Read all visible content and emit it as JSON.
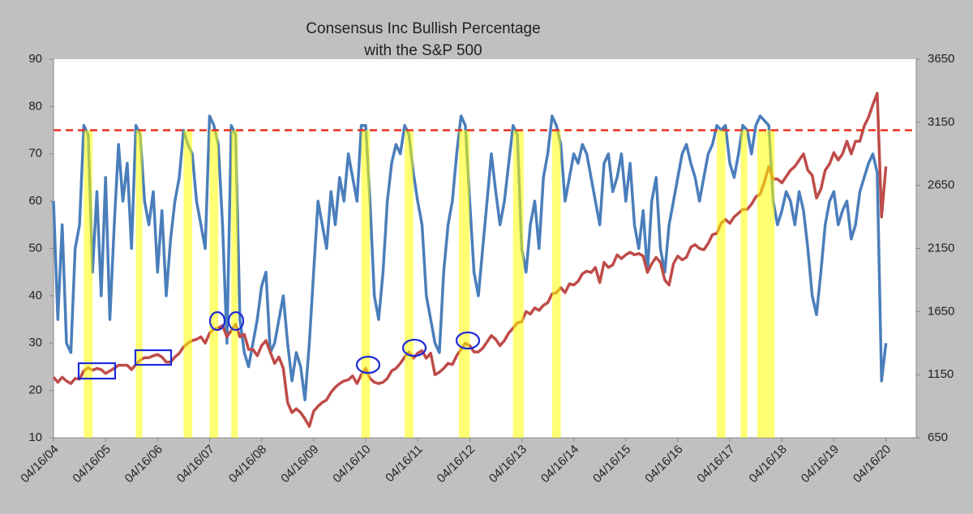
{
  "chart_data": {
    "type": "line",
    "title": "Consensus Inc Bullish Percentage",
    "subtitle": "with the S&P 500",
    "x": [
      "04/16/04",
      "05/16/04",
      "06/16/04",
      "07/16/04",
      "08/16/04",
      "09/16/04",
      "10/16/04",
      "11/16/04",
      "12/16/04",
      "01/16/05",
      "02/16/05",
      "03/16/05",
      "04/16/05",
      "05/16/05",
      "06/16/05",
      "07/16/05",
      "08/16/05",
      "09/16/05",
      "10/16/05",
      "11/16/05",
      "12/16/05",
      "01/16/06",
      "02/16/06",
      "03/16/06",
      "04/16/06",
      "05/16/06",
      "06/16/06",
      "07/16/06",
      "08/16/06",
      "09/16/06",
      "10/16/06",
      "11/16/06",
      "12/16/06",
      "01/16/07",
      "02/16/07",
      "03/16/07",
      "04/16/07",
      "05/16/07",
      "06/16/07",
      "07/16/07",
      "08/16/07",
      "09/16/07",
      "10/16/07",
      "11/16/07",
      "12/16/07",
      "01/16/08",
      "02/16/08",
      "03/16/08",
      "04/16/08",
      "05/16/08",
      "06/16/08",
      "07/16/08",
      "08/16/08",
      "09/16/08",
      "10/16/08",
      "11/16/08",
      "12/16/08",
      "01/16/09",
      "02/16/09",
      "03/16/09",
      "04/16/09",
      "05/16/09",
      "06/16/09",
      "07/16/09",
      "08/16/09",
      "09/16/09",
      "10/16/09",
      "11/16/09",
      "12/16/09",
      "01/16/10",
      "02/16/10",
      "03/16/10",
      "04/16/10",
      "05/16/10",
      "06/16/10",
      "07/16/10",
      "08/16/10",
      "09/16/10",
      "10/16/10",
      "11/16/10",
      "12/16/10",
      "01/16/11",
      "02/16/11",
      "03/16/11",
      "04/16/11",
      "05/16/11",
      "06/16/11",
      "07/16/11",
      "08/16/11",
      "09/16/11",
      "10/16/11",
      "11/16/11",
      "12/16/11",
      "01/16/12",
      "02/16/12",
      "03/16/12",
      "04/16/12",
      "05/16/12",
      "06/16/12",
      "07/16/12",
      "08/16/12",
      "09/16/12",
      "10/16/12",
      "11/16/12",
      "12/16/12",
      "01/16/13",
      "02/16/13",
      "03/16/13",
      "04/16/13",
      "05/16/13",
      "06/16/13",
      "07/16/13",
      "08/16/13",
      "09/16/13",
      "10/16/13",
      "11/16/13",
      "12/16/13",
      "01/16/14",
      "02/16/14",
      "03/16/14",
      "04/16/14",
      "05/16/14",
      "06/16/14",
      "07/16/14",
      "08/16/14",
      "09/16/14",
      "10/16/14",
      "11/16/14",
      "12/16/14",
      "01/16/15",
      "02/16/15",
      "03/16/15",
      "04/16/15",
      "05/16/15",
      "06/16/15",
      "07/16/15",
      "08/16/15",
      "09/16/15",
      "10/16/15",
      "11/16/15",
      "12/16/15",
      "01/16/16",
      "02/16/16",
      "03/16/16",
      "04/16/16",
      "05/16/16",
      "06/16/16",
      "07/16/16",
      "08/16/16",
      "09/16/16",
      "10/16/16",
      "11/16/16",
      "12/16/16",
      "01/16/17",
      "02/16/17",
      "03/16/17",
      "04/16/17",
      "05/16/17",
      "06/16/17",
      "07/16/17",
      "08/16/17",
      "09/16/17",
      "10/16/17",
      "11/16/17",
      "12/16/17",
      "01/16/18",
      "02/16/18",
      "03/16/18",
      "04/16/18",
      "05/16/18",
      "06/16/18",
      "07/16/18",
      "08/16/18",
      "09/16/18",
      "10/16/18",
      "11/16/18",
      "12/16/18",
      "01/16/19",
      "02/16/19",
      "03/16/19",
      "04/16/19",
      "05/16/19",
      "06/16/19",
      "07/16/19",
      "08/16/19",
      "09/16/19",
      "10/16/19",
      "11/16/19",
      "12/16/19",
      "01/16/20",
      "02/16/20",
      "03/16/20",
      "04/16/20"
    ],
    "series": [
      {
        "name": "Consensus Inc Bullish Percentage",
        "color": "#4a7ebb",
        "axis": "y",
        "values": [
          60,
          35,
          55,
          30,
          28,
          50,
          55,
          76,
          74,
          45,
          62,
          40,
          65,
          35,
          55,
          72,
          60,
          68,
          50,
          76,
          74,
          60,
          55,
          62,
          45,
          58,
          40,
          52,
          60,
          65,
          75,
          72,
          70,
          60,
          55,
          50,
          78,
          76,
          72,
          55,
          30,
          76,
          74,
          35,
          28,
          25,
          30,
          35,
          42,
          45,
          28,
          30,
          35,
          40,
          30,
          22,
          28,
          25,
          18,
          30,
          45,
          60,
          55,
          50,
          62,
          55,
          65,
          60,
          70,
          65,
          60,
          76,
          76,
          60,
          40,
          35,
          45,
          60,
          68,
          72,
          70,
          76,
          74,
          66,
          60,
          55,
          40,
          35,
          30,
          28,
          45,
          55,
          60,
          70,
          78,
          76,
          60,
          45,
          40,
          50,
          60,
          70,
          62,
          55,
          60,
          68,
          76,
          74,
          50,
          45,
          55,
          60,
          50,
          65,
          70,
          78,
          76,
          72,
          60,
          65,
          70,
          68,
          72,
          70,
          65,
          60,
          55,
          68,
          70,
          62,
          65,
          70,
          60,
          68,
          55,
          50,
          58,
          45,
          60,
          65,
          50,
          45,
          55,
          60,
          65,
          70,
          72,
          68,
          65,
          60,
          65,
          70,
          72,
          76,
          75,
          76,
          68,
          65,
          70,
          76,
          75,
          70,
          76,
          78,
          77,
          76,
          60,
          55,
          58,
          62,
          60,
          55,
          62,
          58,
          50,
          40,
          36,
          45,
          55,
          60,
          62,
          55,
          58,
          60,
          52,
          55,
          62,
          65,
          68,
          70,
          66,
          22,
          30
        ]
      },
      {
        "name": "S&P 500",
        "color": "#be4b48",
        "axis": "y2",
        "values": [
          1130,
          1090,
          1130,
          1100,
          1080,
          1120,
          1115,
          1180,
          1205,
          1185,
          1200,
          1190,
          1160,
          1180,
          1200,
          1225,
          1225,
          1225,
          1190,
          1230,
          1265,
          1285,
          1285,
          1300,
          1310,
          1290,
          1250,
          1250,
          1290,
          1320,
          1370,
          1400,
          1420,
          1430,
          1450,
          1400,
          1480,
          1510,
          1520,
          1540,
          1450,
          1500,
          1550,
          1450,
          1470,
          1350,
          1350,
          1300,
          1380,
          1420,
          1330,
          1240,
          1290,
          1200,
          930,
          850,
          880,
          850,
          800,
          740,
          860,
          900,
          930,
          950,
          1010,
          1050,
          1080,
          1100,
          1110,
          1140,
          1080,
          1150,
          1200,
          1120,
          1090,
          1080,
          1090,
          1120,
          1180,
          1200,
          1240,
          1290,
          1330,
          1280,
          1320,
          1340,
          1280,
          1320,
          1150,
          1170,
          1200,
          1240,
          1230,
          1300,
          1350,
          1400,
          1380,
          1330,
          1330,
          1360,
          1410,
          1460,
          1430,
          1380,
          1420,
          1480,
          1520,
          1560,
          1570,
          1650,
          1630,
          1680,
          1660,
          1700,
          1720,
          1790,
          1800,
          1840,
          1800,
          1870,
          1860,
          1890,
          1950,
          1970,
          1960,
          2000,
          1880,
          2040,
          2000,
          2020,
          2100,
          2070,
          2100,
          2120,
          2100,
          2110,
          2090,
          1960,
          2030,
          2080,
          2040,
          1900,
          1860,
          2030,
          2090,
          2060,
          2080,
          2160,
          2180,
          2150,
          2140,
          2190,
          2260,
          2270,
          2350,
          2380,
          2350,
          2400,
          2430,
          2460,
          2460,
          2500,
          2560,
          2580,
          2680,
          2800,
          2700,
          2700,
          2670,
          2720,
          2770,
          2800,
          2850,
          2900,
          2770,
          2730,
          2550,
          2620,
          2770,
          2820,
          2910,
          2850,
          2900,
          3000,
          2900,
          3000,
          3000,
          3120,
          3190,
          3290,
          3380,
          2400,
          2800
        ]
      }
    ],
    "xlim": [
      "04/16/04",
      "11/16/20"
    ],
    "xticks": [
      "04/16/04",
      "04/16/05",
      "04/16/06",
      "04/16/07",
      "04/16/08",
      "04/16/09",
      "04/16/10",
      "04/16/11",
      "04/16/12",
      "04/16/13",
      "04/16/14",
      "04/16/15",
      "04/16/16",
      "04/16/17",
      "04/16/18",
      "04/16/19",
      "04/16/20"
    ],
    "ylim": [
      10,
      90
    ],
    "yticks": [
      10,
      20,
      30,
      40,
      50,
      60,
      70,
      80,
      90
    ],
    "y2lim": [
      650,
      3650
    ],
    "y2ticks": [
      650,
      1150,
      1650,
      2150,
      2650,
      3150,
      3650
    ],
    "reference_line": {
      "value": 75,
      "color": "#e8311e"
    },
    "highlights": {
      "color": "#ffff00",
      "ranges": [
        [
          "11/16/04",
          "01/16/05"
        ],
        [
          "11/16/05",
          "12/31/05"
        ],
        [
          "10/16/06",
          "12/16/06"
        ],
        [
          "04/16/07",
          "06/16/07"
        ],
        [
          "09/16/07",
          "11/01/07"
        ],
        [
          "03/16/10",
          "05/16/10"
        ],
        [
          "01/16/11",
          "03/16/11"
        ],
        [
          "02/01/12",
          "04/16/12"
        ],
        [
          "02/16/13",
          "04/30/13"
        ],
        [
          "11/16/13",
          "01/16/14"
        ],
        [
          "01/16/17",
          "03/16/17"
        ],
        [
          "07/01/17",
          "08/16/17"
        ],
        [
          "10/26/17",
          "02/26/18"
        ]
      ]
    },
    "grid": false
  }
}
